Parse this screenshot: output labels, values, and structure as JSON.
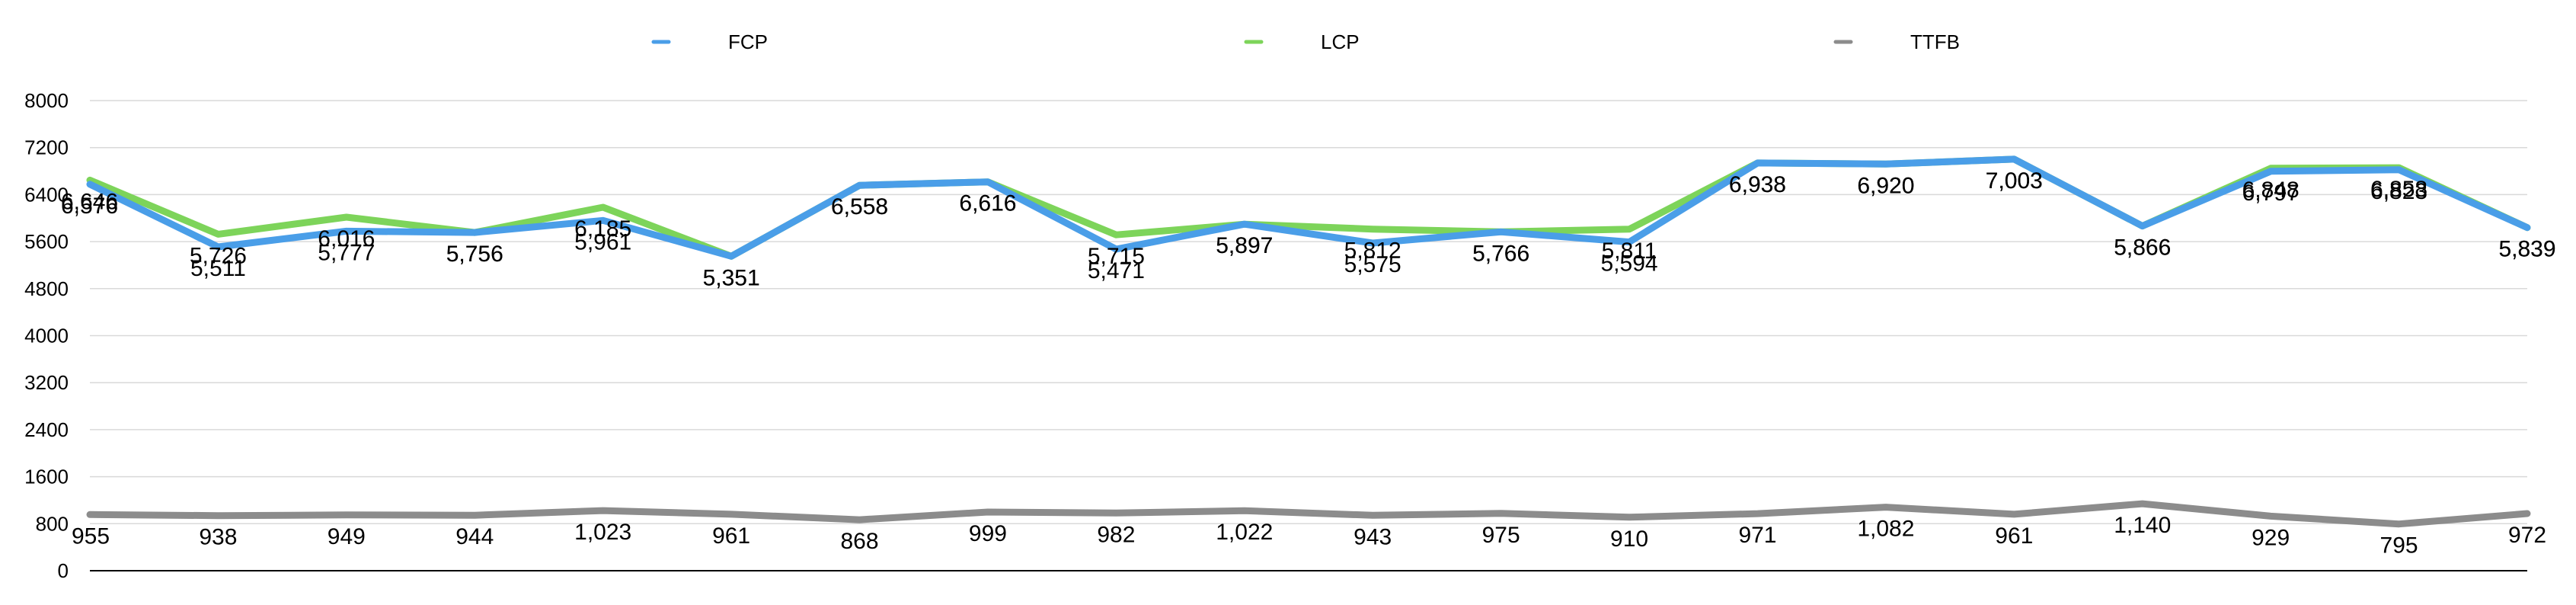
{
  "chart_data": {
    "type": "line",
    "title": "",
    "xlabel": "",
    "ylabel": "",
    "ylim": [
      0,
      8000
    ],
    "yticks": [
      0,
      800,
      1600,
      2400,
      3200,
      4000,
      4800,
      5600,
      6400,
      7200,
      8000
    ],
    "ytick_labels": [
      "0",
      "800",
      "1600",
      "2400",
      "3200",
      "4000",
      "4800",
      "5600",
      "6400",
      "7200",
      "8000"
    ],
    "grid": true,
    "legend_position": "top",
    "series": [
      {
        "name": "FCP",
        "color": "#4a9ee8",
        "values": [
          6576,
          5511,
          5777,
          5756,
          5961,
          5351,
          6558,
          6616,
          5471,
          5897,
          5575,
          5766,
          5594,
          6938,
          6920,
          7003,
          5866,
          6797,
          6823,
          5839
        ],
        "labels": [
          "6,576",
          "5,511",
          "5,777",
          "5,756",
          "5,961",
          "5,351",
          "6,558",
          "6,616",
          "5,471",
          "5,897",
          "5,575",
          "5,766",
          "5,594",
          "6,938",
          "6,920",
          "7,003",
          "5,866",
          "6,797",
          "6,823",
          "5,839"
        ]
      },
      {
        "name": "LCP",
        "color": "#7dd45a",
        "values": [
          6646,
          5726,
          6016,
          5756,
          6185,
          5351,
          6558,
          6616,
          5715,
          5897,
          5812,
          5766,
          5811,
          6938,
          6920,
          7003,
          5866,
          6848,
          6858,
          5839
        ],
        "labels": [
          "6,646",
          "5,726",
          "6,016",
          "5,756",
          "6,185",
          "5,351",
          "6,558",
          "6,616",
          "5,715",
          "5,897",
          "5,812",
          "5,766",
          "5,811",
          "6,938",
          "6,920",
          "7,003",
          "5,866",
          "6,848",
          "6,858",
          "5,839"
        ]
      },
      {
        "name": "TTFB",
        "color": "#8c8c8c",
        "values": [
          955,
          938,
          949,
          944,
          1023,
          961,
          868,
          999,
          982,
          1022,
          943,
          975,
          910,
          971,
          1082,
          961,
          1140,
          929,
          795,
          972
        ],
        "labels": [
          "955",
          "938",
          "949",
          "944",
          "1,023",
          "961",
          "868",
          "999",
          "982",
          "1,022",
          "943",
          "975",
          "910",
          "971",
          "1,082",
          "961",
          "1,140",
          "929",
          "795",
          "972"
        ]
      }
    ]
  }
}
